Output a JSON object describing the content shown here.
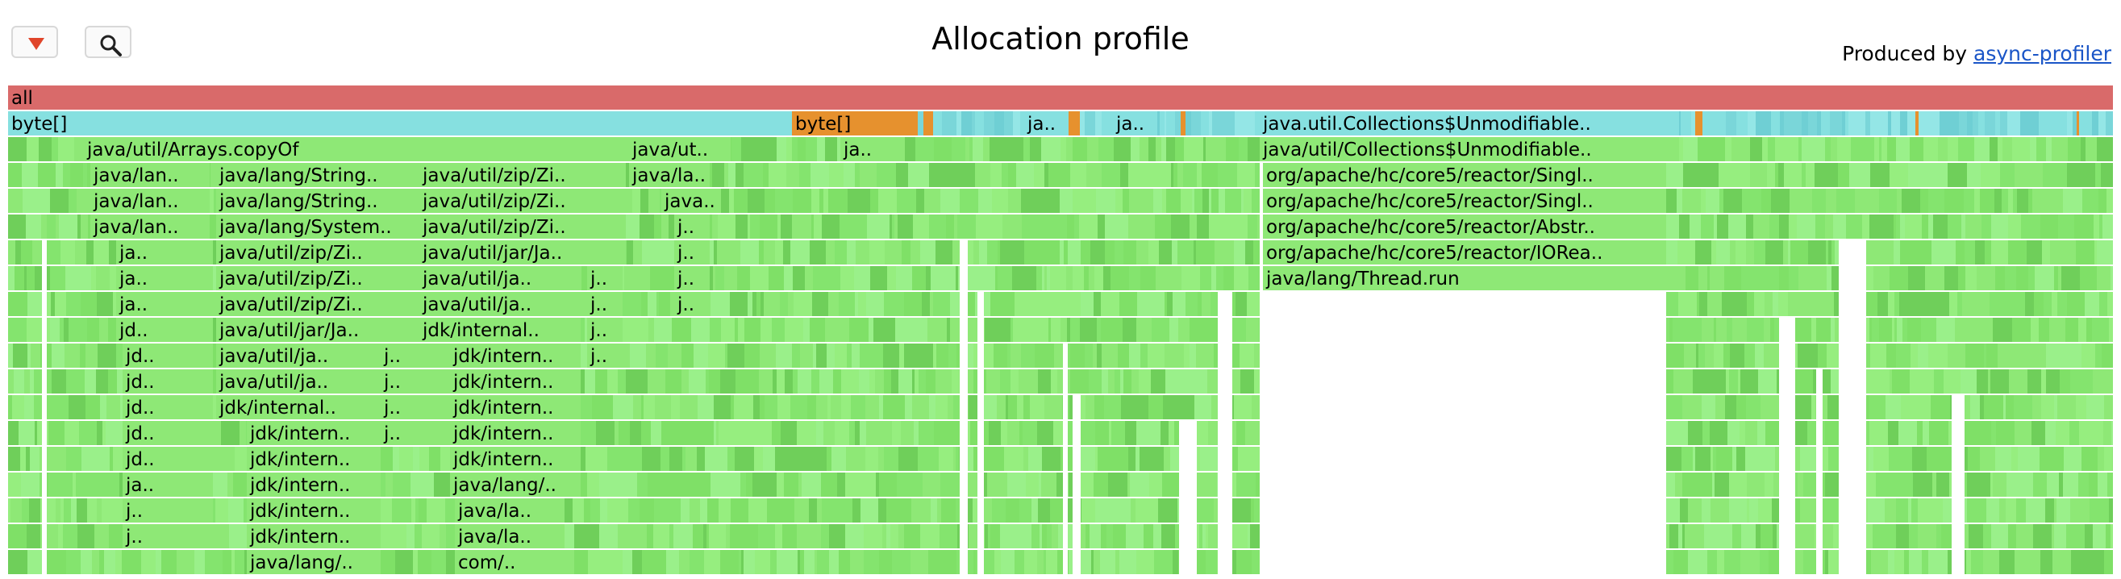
{
  "toolbar": {
    "reverse_icon": "triangle-down-icon",
    "search_icon": "magnifier-icon"
  },
  "header": {
    "title": "Allocation profile",
    "produced_by": "Produced by",
    "producer_link": "async-profiler"
  },
  "colors": {
    "root": "#d96a6a",
    "allocated_type": "#86e0e0",
    "large_allocation": "#e6912e",
    "java_frame": "#8ee876",
    "java_frame_dark": "#6fcf5a"
  },
  "flame": {
    "rows": [
      {
        "frames": [
          {
            "label": "all",
            "kind": "root"
          }
        ]
      },
      {
        "frames": [
          {
            "label": "byte[]",
            "kind": "type"
          },
          {
            "label": "byte[]",
            "kind": "large"
          },
          {
            "label": "ja..",
            "kind": "type"
          },
          {
            "label": "ja..",
            "kind": "type"
          },
          {
            "label": "java.util.Collections$Unmodifiable..",
            "kind": "type"
          }
        ]
      },
      {
        "frames": [
          {
            "label": "java/util/Arrays.copyOf",
            "kind": "java"
          },
          {
            "label": "java/ut..",
            "kind": "java"
          },
          {
            "label": "ja..",
            "kind": "java"
          },
          {
            "label": "java/util/Collections$Unmodifiable..",
            "kind": "java"
          }
        ]
      },
      {
        "frames": [
          {
            "label": "java/lan..",
            "kind": "java"
          },
          {
            "label": "java/lang/String..",
            "kind": "java"
          },
          {
            "label": "java/util/zip/Zi..",
            "kind": "java"
          },
          {
            "label": "java/la..",
            "kind": "java"
          },
          {
            "label": "org/apache/hc/core5/reactor/Singl..",
            "kind": "java"
          }
        ]
      },
      {
        "frames": [
          {
            "label": "java/lan..",
            "kind": "java"
          },
          {
            "label": "java/lang/String..",
            "kind": "java"
          },
          {
            "label": "java/util/zip/Zi..",
            "kind": "java"
          },
          {
            "label": "java..",
            "kind": "java"
          },
          {
            "label": "org/apache/hc/core5/reactor/Singl..",
            "kind": "java"
          }
        ]
      },
      {
        "frames": [
          {
            "label": "java/lan..",
            "kind": "java"
          },
          {
            "label": "java/lang/System..",
            "kind": "java"
          },
          {
            "label": "java/util/zip/Zi..",
            "kind": "java"
          },
          {
            "label": "j..",
            "kind": "java"
          },
          {
            "label": "org/apache/hc/core5/reactor/Abstr..",
            "kind": "java"
          }
        ]
      },
      {
        "frames": [
          {
            "label": "ja..",
            "kind": "java"
          },
          {
            "label": "java/util/zip/Zi..",
            "kind": "java"
          },
          {
            "label": "java/util/jar/Ja..",
            "kind": "java"
          },
          {
            "label": "j..",
            "kind": "java"
          },
          {
            "label": "org/apache/hc/core5/reactor/IORea..",
            "kind": "java"
          }
        ]
      },
      {
        "frames": [
          {
            "label": "ja..",
            "kind": "java"
          },
          {
            "label": "java/util/zip/Zi..",
            "kind": "java"
          },
          {
            "label": "java/util/ja..",
            "kind": "java"
          },
          {
            "label": "j..",
            "kind": "java"
          },
          {
            "label": "j..",
            "kind": "java"
          },
          {
            "label": "java/lang/Thread.run",
            "kind": "java"
          }
        ]
      },
      {
        "frames": [
          {
            "label": "ja..",
            "kind": "java"
          },
          {
            "label": "java/util/zip/Zi..",
            "kind": "java"
          },
          {
            "label": "java/util/ja..",
            "kind": "java"
          },
          {
            "label": "j..",
            "kind": "java"
          },
          {
            "label": "j..",
            "kind": "java"
          }
        ]
      },
      {
        "frames": [
          {
            "label": "jd..",
            "kind": "java"
          },
          {
            "label": "java/util/jar/Ja..",
            "kind": "java"
          },
          {
            "label": "jdk/internal..",
            "kind": "java"
          },
          {
            "label": "j..",
            "kind": "java"
          }
        ]
      },
      {
        "frames": [
          {
            "label": "jd..",
            "kind": "java"
          },
          {
            "label": "java/util/ja..",
            "kind": "java"
          },
          {
            "label": "j..",
            "kind": "java"
          },
          {
            "label": "jdk/intern..",
            "kind": "java"
          },
          {
            "label": "j..",
            "kind": "java"
          }
        ]
      },
      {
        "frames": [
          {
            "label": "jd..",
            "kind": "java"
          },
          {
            "label": "java/util/ja..",
            "kind": "java"
          },
          {
            "label": "j..",
            "kind": "java"
          },
          {
            "label": "jdk/intern..",
            "kind": "java"
          }
        ]
      },
      {
        "frames": [
          {
            "label": "jd..",
            "kind": "java"
          },
          {
            "label": "jdk/internal..",
            "kind": "java"
          },
          {
            "label": "j..",
            "kind": "java"
          },
          {
            "label": "jdk/intern..",
            "kind": "java"
          }
        ]
      },
      {
        "frames": [
          {
            "label": "jd..",
            "kind": "java"
          },
          {
            "label": "jdk/intern..",
            "kind": "java"
          },
          {
            "label": "j..",
            "kind": "java"
          },
          {
            "label": "jdk/intern..",
            "kind": "java"
          }
        ]
      },
      {
        "frames": [
          {
            "label": "jd..",
            "kind": "java"
          },
          {
            "label": "jdk/intern..",
            "kind": "java"
          },
          {
            "label": "jdk/intern..",
            "kind": "java"
          }
        ]
      },
      {
        "frames": [
          {
            "label": "ja..",
            "kind": "java"
          },
          {
            "label": "jdk/intern..",
            "kind": "java"
          },
          {
            "label": "java/lang/..",
            "kind": "java"
          }
        ]
      },
      {
        "frames": [
          {
            "label": "j..",
            "kind": "java"
          },
          {
            "label": "jdk/intern..",
            "kind": "java"
          },
          {
            "label": "java/la..",
            "kind": "java"
          }
        ]
      },
      {
        "frames": [
          {
            "label": "j..",
            "kind": "java"
          },
          {
            "label": "jdk/intern..",
            "kind": "java"
          },
          {
            "label": "java/la..",
            "kind": "java"
          }
        ]
      },
      {
        "frames": [
          {
            "label": "java/lang/..",
            "kind": "java"
          },
          {
            "label": "com/..",
            "kind": "java"
          }
        ]
      }
    ]
  }
}
